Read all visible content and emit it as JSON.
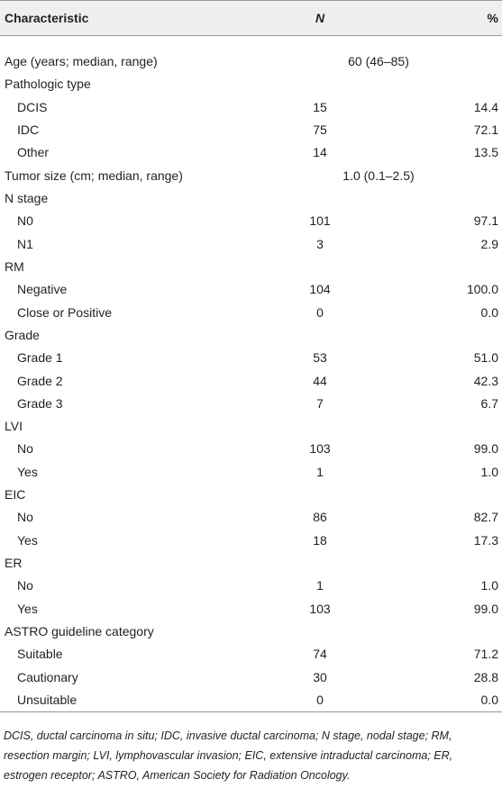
{
  "table": {
    "header": [
      "Characteristic",
      "N",
      "%"
    ],
    "sections": [
      {
        "label": "Age (years; median, range)",
        "value": "60 (46–85)"
      },
      {
        "label": "Pathologic type",
        "rows": [
          [
            "DCIS",
            "15",
            "14.4"
          ],
          [
            "IDC",
            "75",
            "72.1"
          ],
          [
            "Other",
            "14",
            "13.5"
          ]
        ]
      },
      {
        "label": "Tumor size (cm; median, range)",
        "value": "1.0 (0.1–2.5)"
      },
      {
        "label": "N stage",
        "rows": [
          [
            "N0",
            "101",
            "97.1"
          ],
          [
            "N1",
            "3",
            "2.9"
          ]
        ]
      },
      {
        "label": "RM",
        "rows": [
          [
            "Negative",
            "104",
            "100.0"
          ],
          [
            "Close or Positive",
            "0",
            "0.0"
          ]
        ]
      },
      {
        "label": "Grade",
        "rows": [
          [
            "Grade 1",
            "53",
            "51.0"
          ],
          [
            "Grade 2",
            "44",
            "42.3"
          ],
          [
            "Grade 3",
            "7",
            "6.7"
          ]
        ]
      },
      {
        "label": "LVI",
        "rows": [
          [
            "No",
            "103",
            "99.0"
          ],
          [
            "Yes",
            "1",
            "1.0"
          ]
        ]
      },
      {
        "label": "EIC",
        "rows": [
          [
            "No",
            "86",
            "82.7"
          ],
          [
            "Yes",
            "18",
            "17.3"
          ]
        ]
      },
      {
        "label": "ER",
        "rows": [
          [
            "No",
            "1",
            "1.0"
          ],
          [
            "Yes",
            "103",
            "99.0"
          ]
        ]
      },
      {
        "label": "ASTRO guideline category",
        "rows": [
          [
            "Suitable",
            "74",
            "71.2"
          ],
          [
            "Cautionary",
            "30",
            "28.8"
          ],
          [
            "Unsuitable",
            "0",
            "0.0"
          ]
        ]
      }
    ],
    "footnote": "DCIS, ductal carcinoma in situ; IDC, invasive ductal carcinoma; N stage, nodal stage; RM, resection margin; LVI, lymphovascular invasion; EIC, extensive intraductal carcinoma; ER, estrogen receptor; ASTRO, American Society for Radiation Oncology."
  }
}
